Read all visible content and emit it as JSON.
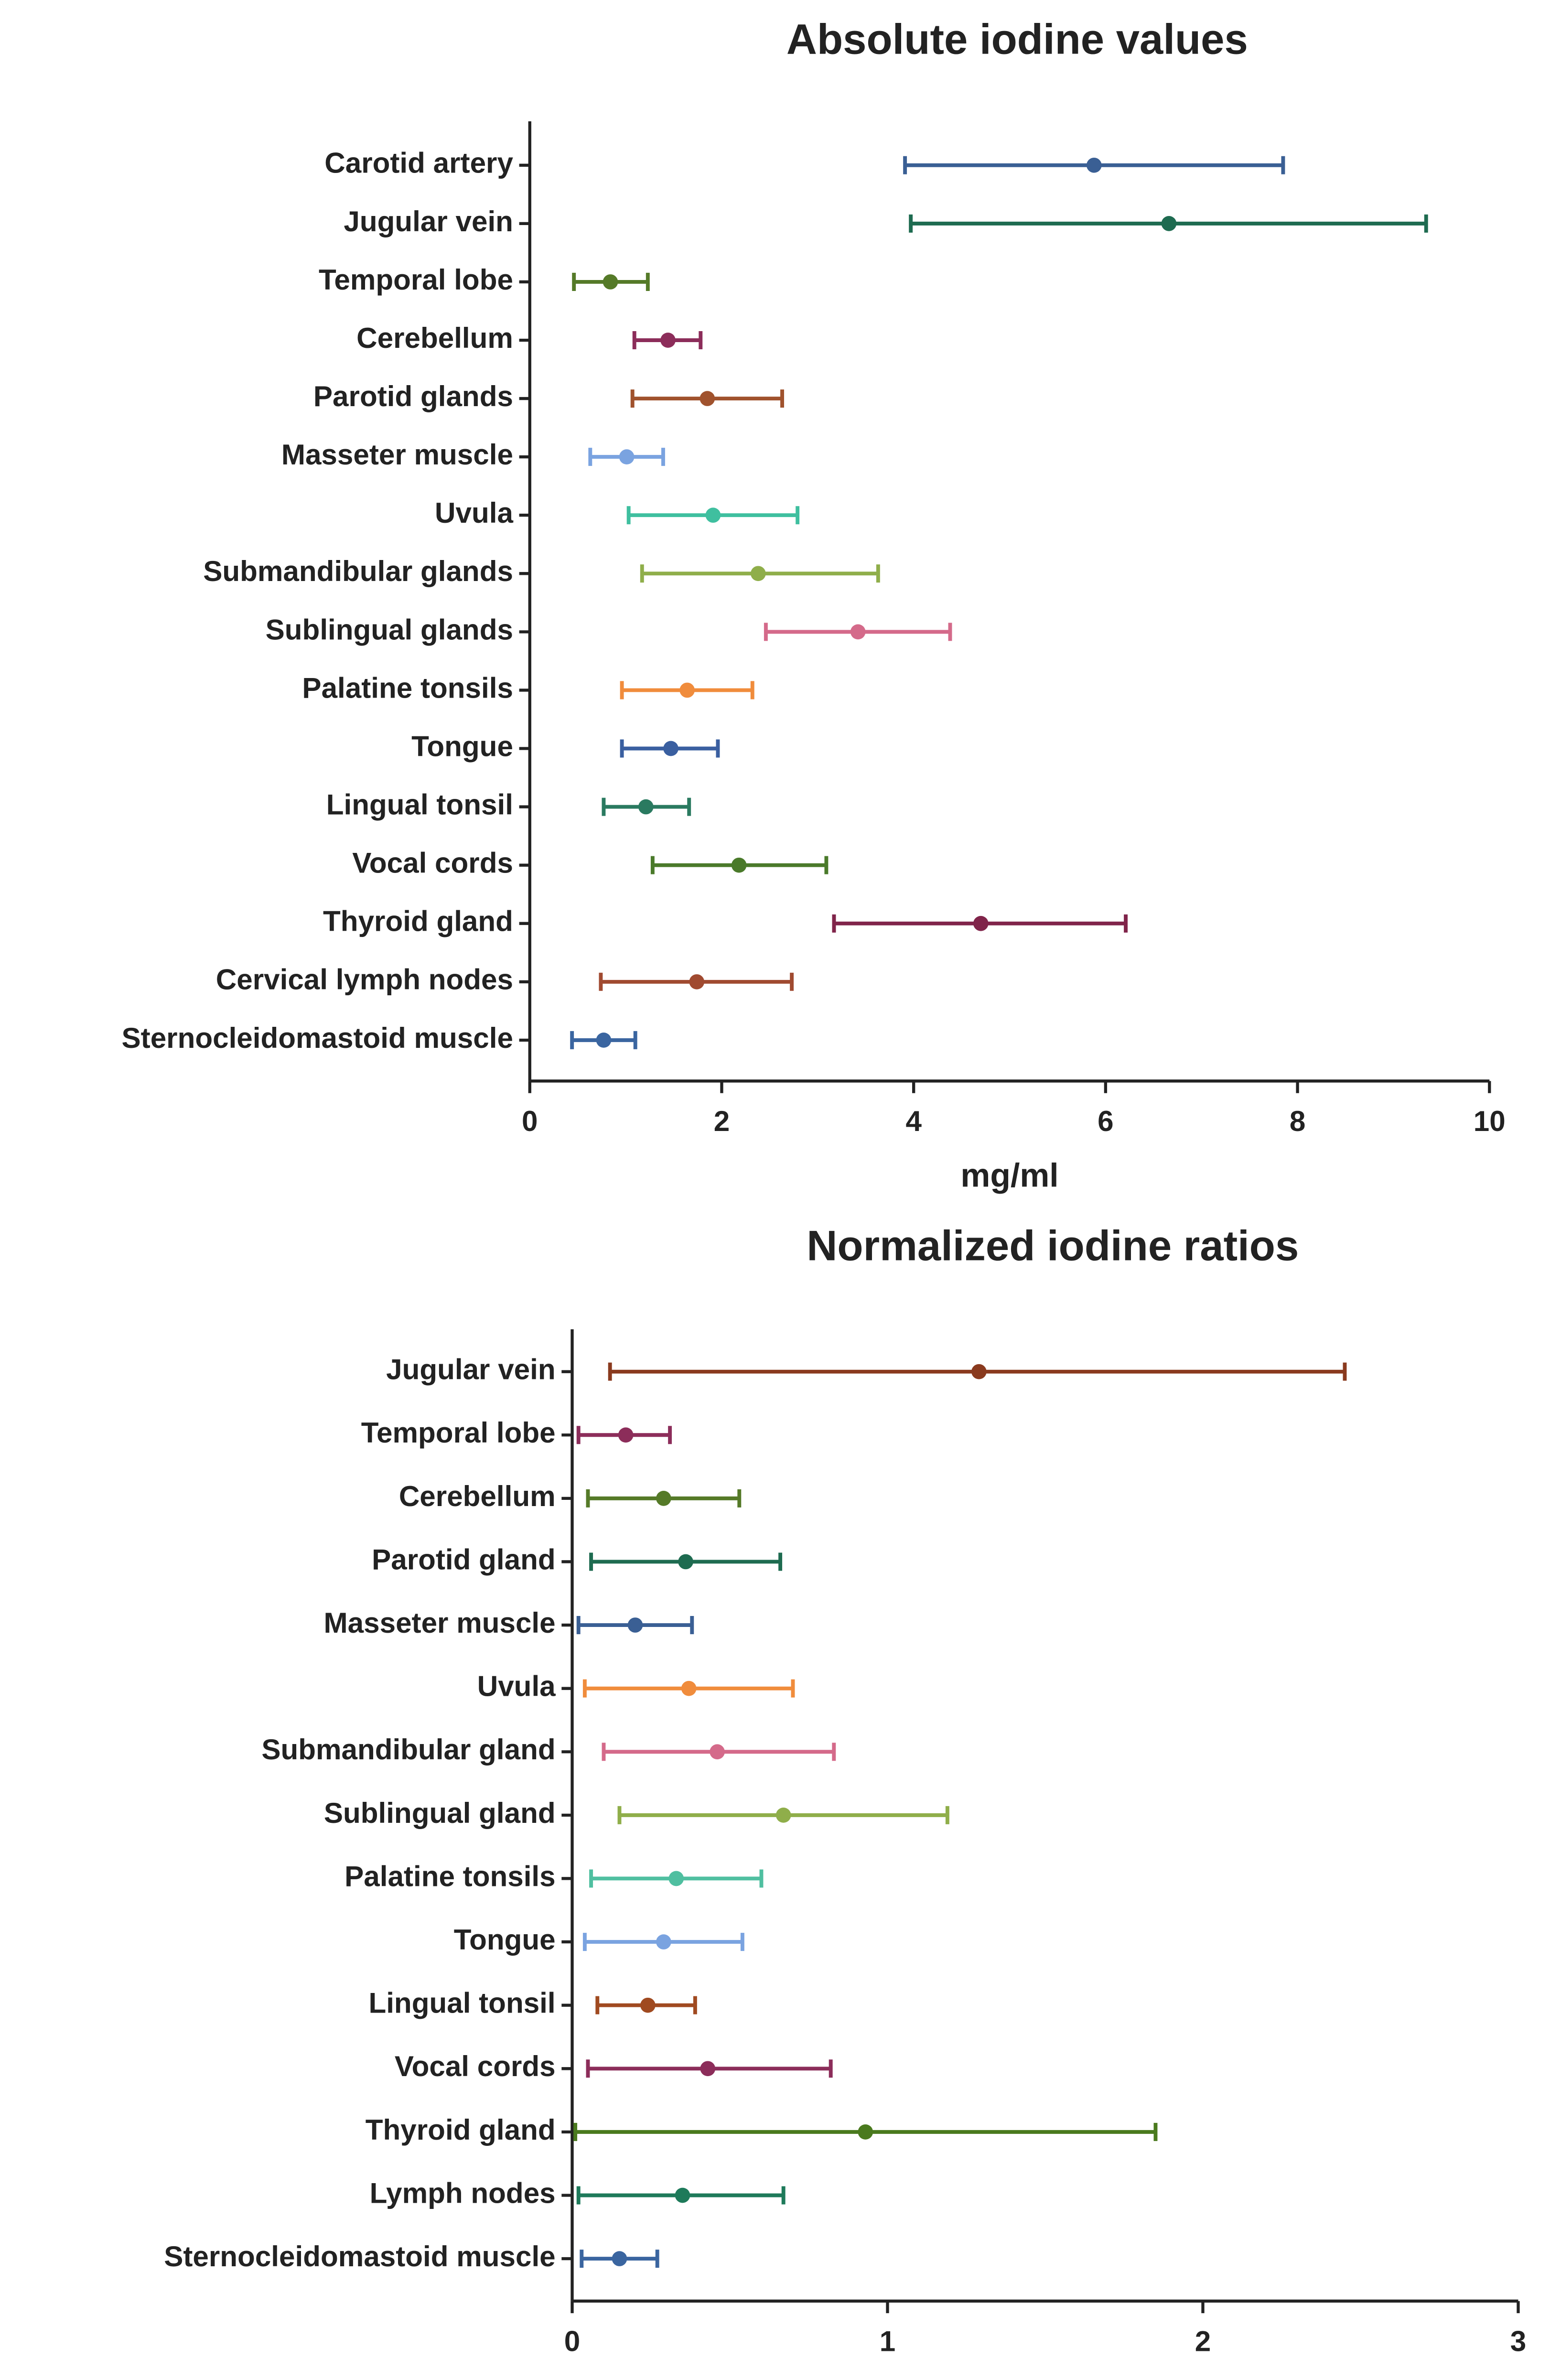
{
  "chart_data": [
    {
      "type": "errorbar",
      "title": "Absolute iodine values",
      "xlabel": "mg/ml",
      "categories": [
        "Carotid artery",
        "Jugular vein",
        "Temporal lobe",
        "Cerebellum",
        "Parotid glands",
        "Masseter muscle",
        "Uvula",
        "Submandibular glands",
        "Sublingual glands",
        "Palatine tonsils",
        "Tongue",
        "Lingual tonsil",
        "Vocal cords",
        "Thyroid gland",
        "Cervical lymph nodes",
        "Sternocleidomastoid muscle"
      ],
      "values": [
        5.88,
        6.66,
        0.84,
        1.44,
        1.85,
        1.01,
        1.91,
        2.38,
        3.42,
        1.64,
        1.47,
        1.21,
        2.18,
        4.7,
        1.74,
        0.77
      ],
      "lower": [
        3.91,
        3.97,
        0.46,
        1.09,
        1.07,
        0.63,
        1.03,
        1.17,
        2.46,
        0.96,
        0.96,
        0.77,
        1.28,
        3.17,
        0.74,
        0.44
      ],
      "upper": [
        7.85,
        9.34,
        1.23,
        1.78,
        2.63,
        1.39,
        2.79,
        3.63,
        4.38,
        2.32,
        1.96,
        1.66,
        3.09,
        6.21,
        2.73,
        1.1
      ],
      "colors": [
        "#3a5f94",
        "#1e6b50",
        "#557a28",
        "#8c2d5a",
        "#a0522d",
        "#7aa3e0",
        "#3fbf9f",
        "#8fae4a",
        "#d46a8a",
        "#f08c3c",
        "#3a5fa0",
        "#2a7a60",
        "#4a7a2a",
        "#80244a",
        "#a04a30",
        "#3a65a0"
      ],
      "xlim": [
        0,
        10
      ],
      "xticks": [
        0,
        2,
        4,
        6,
        8,
        10
      ]
    },
    {
      "type": "errorbar",
      "title": "Normalized iodine ratios",
      "categories": [
        "Jugular vein",
        "Temporal lobe",
        "Cerebellum",
        "Parotid gland",
        "Masseter muscle",
        "Uvula",
        "Submandibular gland",
        "Sublingual gland",
        "Palatine tonsils",
        "Tongue",
        "Lingual tonsil",
        "Vocal cords",
        "Thyroid gland",
        "Lymph nodes",
        "Sternocleidomastoid muscle"
      ],
      "values": [
        1.29,
        0.17,
        0.29,
        0.36,
        0.2,
        0.37,
        0.46,
        0.67,
        0.33,
        0.29,
        0.24,
        0.43,
        0.93,
        0.35,
        0.15
      ],
      "lower": [
        0.12,
        0.02,
        0.05,
        0.06,
        0.02,
        0.04,
        0.1,
        0.15,
        0.06,
        0.04,
        0.08,
        0.05,
        0.01,
        0.02,
        0.03
      ],
      "upper": [
        2.45,
        0.31,
        0.53,
        0.66,
        0.38,
        0.7,
        0.83,
        1.19,
        0.6,
        0.54,
        0.39,
        0.82,
        1.85,
        0.67,
        0.27
      ],
      "colors": [
        "#8a3a1e",
        "#8c2d5a",
        "#557a28",
        "#1e6b50",
        "#3a5f94",
        "#f08c3c",
        "#d46a8a",
        "#8fae4a",
        "#4fbfa0",
        "#7aa3e0",
        "#a04a20",
        "#8c2d5a",
        "#4a7a1e",
        "#1e7a5a",
        "#3a65a0"
      ],
      "xlim": [
        0,
        3
      ],
      "xticks": [
        0,
        1,
        2,
        3
      ]
    }
  ]
}
